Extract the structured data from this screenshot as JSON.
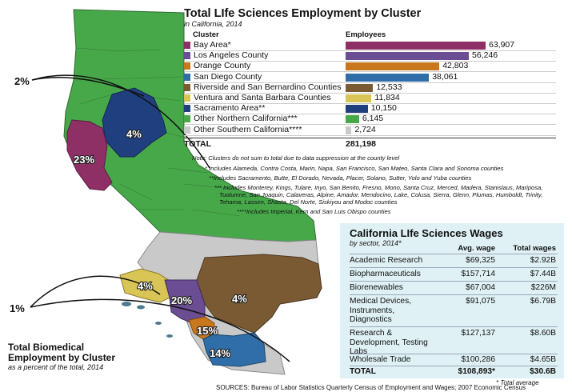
{
  "employment": {
    "title": "Total LIfe Sciences Employment by Cluster",
    "subtitle": "in California, 2014",
    "col_cluster": "Cluster",
    "col_employees": "Employees",
    "total_label": "TOTAL",
    "total_value": "281,198",
    "notes": [
      "Note: Clusters do not sum to total due to data suppression at the county level",
      "* Includes Alameda, Contra Costa, Marin, Napa, San Francisco, San Mateo, Santa Clara and Sonoma counties",
      "**Includes Sacramento, Butte, El Dorado, Nevada, Placer, Solano, Sutter, Yolo and Yuba counties",
      "*** Includes Monterey, Kings, Tulare, Inyo, San Benito, Fresno, Mono, Santa Cruz, Merced, Madera, Stanislaus, Mariposa,",
      "Tuolumne, San Joaquin, Calaveras, Alpine, Amador, Mendocino, Lake, Colusa, Sierra, Glenn, Plumas, Humboldt, Trinity,",
      "Tehama, Lassen, Shasta, Del Norte, Siskiyou and Modoc counties",
      "****Includes Imperial, Kern and  San Luis Obispo counties"
    ]
  },
  "chart_data": {
    "type": "bar",
    "orientation": "horizontal",
    "categories": [
      "Bay Area*",
      "Los Angeles County",
      "Orange County",
      "San Diego County",
      "Riverside and San Bernardino Counties",
      "Ventura and Santa Barbara Counties",
      "Sacramento Area**",
      "Other Northern California***",
      "Other Southern California****"
    ],
    "values": [
      63907,
      56246,
      42803,
      38061,
      12533,
      11834,
      10150,
      6145,
      2724
    ],
    "value_labels": [
      "63,907",
      "56,246",
      "42,803",
      "38,061",
      "12,533",
      "11,834",
      "10,150",
      "6,145",
      "2,724"
    ],
    "colors": [
      "#8e2f66",
      "#6a4d93",
      "#c9771d",
      "#2f6ea8",
      "#7a5a33",
      "#d9c556",
      "#1f3f7f",
      "#47a84a",
      "#c9c9c9"
    ],
    "xlim": [
      0,
      63907
    ]
  },
  "wages": {
    "title": "California LIfe Sciences Wages",
    "subtitle": "by sector, 2014*",
    "col_avg": "Avg. wage",
    "col_total": "Total wages",
    "rows": [
      {
        "sector": "Academic Research",
        "avg": "$69,325",
        "total": "$2.92B"
      },
      {
        "sector": "Biopharmaceuticals",
        "avg": "$157,714",
        "total": "$7.44B"
      },
      {
        "sector": "Biorenewables",
        "avg": "$67,004",
        "total": "$226M"
      },
      {
        "sector": "Medical Devices, Instruments, Diagnostics",
        "avg": "$91,075",
        "total": "$6.79B"
      },
      {
        "sector": "Research & Development, Testing Labs",
        "avg": "$127,137",
        "total": "$8.60B"
      },
      {
        "sector": "Wholesale Trade",
        "avg": "$100,286",
        "total": "$4.65B"
      }
    ],
    "total_label": "TOTAL",
    "total_avg": "$108,893*",
    "total_total": "$30.6B",
    "footnote": "* Total average"
  },
  "map": {
    "title_line1": "Total Biomedical",
    "title_line2": "Employment by Cluster",
    "subtitle": "as a percent of the total, 2014",
    "labels": {
      "north_other": "2%",
      "sacramento": "4%",
      "bay": "23%",
      "ventura": "4%",
      "la": "20%",
      "riverside": "4%",
      "orange": "15%",
      "san_diego": "14%",
      "south_other": "1%"
    },
    "colors": {
      "north_other": "#47a84a",
      "sacramento": "#1f3f7f",
      "bay": "#8e2f66",
      "south_other": "#c9c9c9",
      "ventura": "#d9c556",
      "la": "#6a4d93",
      "riverside": "#7a5a33",
      "orange": "#c9771d",
      "san_diego": "#2f6ea8"
    }
  },
  "sources": "SOURCES: Bureau of Labor Statistics Quarterly Census of Employment and Wages; 2007 Economic Census"
}
